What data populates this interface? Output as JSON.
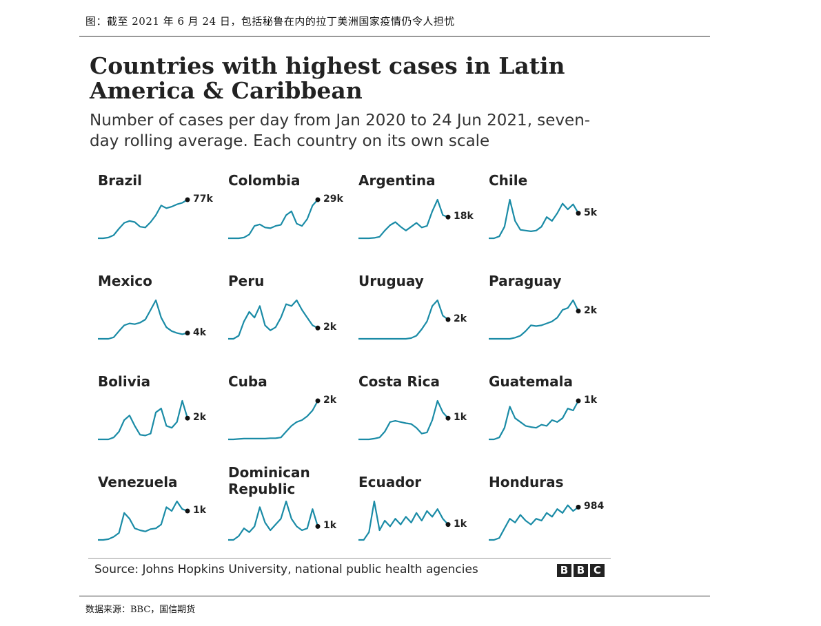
{
  "page": {
    "caption": "图：截至 2021 年 6 月 24 日，包括秘鲁在内的拉丁美洲国家疫情仍令人担忧",
    "data_source": "数据来源：BBC，国信期货"
  },
  "colors": {
    "line": "#1a8ba6",
    "dot": "#111111",
    "text": "#222222"
  },
  "chart_data": {
    "type": "line",
    "title": "Countries with highest cases in Latin America & Caribbean",
    "subtitle": "Number of cases per day from Jan 2020 to 24 Jun 2021, seven-day rolling average. Each country on its own scale",
    "source": "Source: Johns Hopkins University, national public health agencies",
    "logo": "BBC",
    "x_range": [
      "Jan 2020",
      "24 Jun 2021"
    ],
    "series_shape_note": "Each country's y-values are relative to its own peak (0–1), estimated from the sparkline shapes.",
    "panels": [
      {
        "name": "Brazil",
        "latest_label": "77k",
        "values": [
          0,
          0,
          0.02,
          0.08,
          0.25,
          0.4,
          0.45,
          0.42,
          0.3,
          0.28,
          0.42,
          0.6,
          0.85,
          0.78,
          0.82,
          0.88,
          0.92,
          1.0
        ]
      },
      {
        "name": "Colombia",
        "latest_label": "29k",
        "values": [
          0,
          0,
          0,
          0.02,
          0.1,
          0.32,
          0.36,
          0.28,
          0.26,
          0.32,
          0.35,
          0.6,
          0.7,
          0.38,
          0.32,
          0.5,
          0.85,
          1.0
        ]
      },
      {
        "name": "Argentina",
        "latest_label": "18k",
        "values": [
          0,
          0,
          0,
          0.01,
          0.04,
          0.2,
          0.34,
          0.42,
          0.3,
          0.2,
          0.3,
          0.4,
          0.28,
          0.32,
          0.7,
          1.0,
          0.6,
          0.55
        ]
      },
      {
        "name": "Chile",
        "latest_label": "5k",
        "values": [
          0,
          0,
          0.05,
          0.3,
          1.0,
          0.45,
          0.22,
          0.2,
          0.18,
          0.2,
          0.3,
          0.55,
          0.45,
          0.65,
          0.9,
          0.75,
          0.88,
          0.65
        ]
      },
      {
        "name": "Mexico",
        "latest_label": "4k",
        "values": [
          0,
          0,
          0,
          0.04,
          0.2,
          0.35,
          0.4,
          0.38,
          0.42,
          0.5,
          0.75,
          1.0,
          0.55,
          0.3,
          0.2,
          0.15,
          0.12,
          0.15
        ]
      },
      {
        "name": "Peru",
        "latest_label": "2k",
        "values": [
          0,
          0,
          0.08,
          0.45,
          0.7,
          0.55,
          0.85,
          0.35,
          0.22,
          0.3,
          0.55,
          0.9,
          0.85,
          1.0,
          0.75,
          0.55,
          0.35,
          0.28
        ]
      },
      {
        "name": "Uruguay",
        "latest_label": "2k",
        "values": [
          0,
          0,
          0,
          0,
          0,
          0,
          0,
          0,
          0,
          0,
          0.02,
          0.08,
          0.25,
          0.45,
          0.85,
          1.0,
          0.6,
          0.5
        ]
      },
      {
        "name": "Paraguay",
        "latest_label": "2k",
        "values": [
          0,
          0,
          0,
          0,
          0,
          0.03,
          0.08,
          0.2,
          0.35,
          0.33,
          0.35,
          0.4,
          0.45,
          0.55,
          0.75,
          0.8,
          1.0,
          0.72
        ]
      },
      {
        "name": "Bolivia",
        "latest_label": "2k",
        "values": [
          0,
          0,
          0,
          0.05,
          0.2,
          0.5,
          0.62,
          0.35,
          0.12,
          0.1,
          0.15,
          0.7,
          0.8,
          0.35,
          0.3,
          0.45,
          1.0,
          0.55
        ]
      },
      {
        "name": "Cuba",
        "latest_label": "2k",
        "values": [
          0,
          0,
          0.01,
          0.02,
          0.02,
          0.02,
          0.02,
          0.02,
          0.03,
          0.03,
          0.05,
          0.2,
          0.35,
          0.45,
          0.5,
          0.6,
          0.75,
          1.0
        ]
      },
      {
        "name": "Costa Rica",
        "latest_label": "1k",
        "values": [
          0,
          0,
          0,
          0.02,
          0.05,
          0.2,
          0.45,
          0.48,
          0.45,
          0.42,
          0.4,
          0.3,
          0.15,
          0.18,
          0.5,
          1.0,
          0.7,
          0.55
        ]
      },
      {
        "name": "Guatemala",
        "latest_label": "1k",
        "values": [
          0,
          0,
          0.05,
          0.3,
          0.85,
          0.55,
          0.45,
          0.35,
          0.32,
          0.3,
          0.38,
          0.35,
          0.5,
          0.45,
          0.55,
          0.8,
          0.75,
          1.0
        ]
      },
      {
        "name": "Venezuela",
        "latest_label": "1k",
        "values": [
          0,
          0,
          0.02,
          0.08,
          0.18,
          0.7,
          0.55,
          0.3,
          0.25,
          0.22,
          0.28,
          0.3,
          0.4,
          0.85,
          0.75,
          1.0,
          0.8,
          0.75
        ]
      },
      {
        "name": "Dominican Republic",
        "latest_label": "1k",
        "values": [
          0,
          0,
          0.1,
          0.3,
          0.2,
          0.35,
          0.85,
          0.45,
          0.25,
          0.4,
          0.55,
          1.0,
          0.55,
          0.35,
          0.25,
          0.3,
          0.8,
          0.35
        ]
      },
      {
        "name": "Ecuador",
        "latest_label": "1k",
        "values": [
          0,
          0,
          0.2,
          1.0,
          0.25,
          0.5,
          0.35,
          0.55,
          0.4,
          0.6,
          0.45,
          0.7,
          0.5,
          0.75,
          0.6,
          0.8,
          0.55,
          0.4
        ]
      },
      {
        "name": "Honduras",
        "latest_label": "984",
        "values": [
          0,
          0,
          0.05,
          0.3,
          0.55,
          0.45,
          0.65,
          0.5,
          0.4,
          0.55,
          0.5,
          0.7,
          0.6,
          0.8,
          0.7,
          0.9,
          0.75,
          0.85
        ]
      }
    ]
  }
}
